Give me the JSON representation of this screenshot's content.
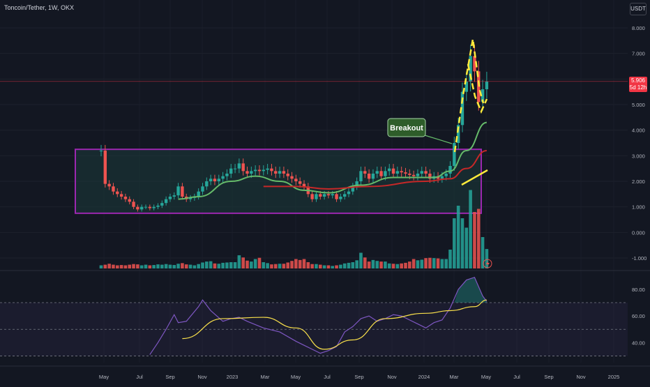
{
  "header": {
    "symbol_title": "Toncoin/Tether, 1W, OKX",
    "currency_button": "USDT"
  },
  "colors": {
    "background": "#131722",
    "up": "#26a69a",
    "down": "#ef5350",
    "ema_green": "#66bb6a",
    "ema_red": "#c62828",
    "range_box": "#9c27b0",
    "annotation_yellow": "#ffeb3b",
    "rsi_line": "#7e57c2",
    "rsi_ma": "#f9e04b",
    "price_line": "#f23645"
  },
  "price_axis": {
    "ticks": [
      "8.000",
      "7.000",
      "6.000",
      "5.000",
      "4.000",
      "3.000",
      "2.000",
      "1.000",
      "0.000",
      "-1.000"
    ]
  },
  "last_price": {
    "value": "5.906",
    "countdown": "5d 12h"
  },
  "rsi_axis": {
    "ticks": [
      "80.00",
      "60.00",
      "40.00"
    ]
  },
  "time_axis": {
    "labels": [
      "May",
      "Jul",
      "Sep",
      "Nov",
      "2023",
      "Mar",
      "May",
      "Jul",
      "Sep",
      "Nov",
      "2024",
      "Mar",
      "May",
      "Jul",
      "Sep",
      "Nov",
      "2025"
    ]
  },
  "annotation": {
    "breakout_label": "Breakout"
  },
  "icons": {
    "alert": "bolt-icon"
  },
  "chart_data": {
    "type": "candlestick",
    "x_unit": "weeks since first bar",
    "ylim": [
      -1.5,
      8.5
    ],
    "close": [
      3.2,
      1.9,
      1.8,
      1.6,
      1.5,
      1.4,
      1.3,
      1.2,
      1.0,
      0.9,
      1.0,
      1.0,
      0.95,
      1.0,
      1.05,
      1.15,
      1.3,
      1.4,
      1.45,
      1.8,
      1.4,
      1.3,
      1.35,
      1.4,
      1.6,
      1.8,
      2.0,
      2.1,
      2.0,
      2.1,
      2.2,
      2.3,
      2.5,
      2.5,
      2.7,
      2.4,
      2.3,
      2.4,
      2.45,
      2.4,
      2.45,
      2.5,
      2.4,
      2.3,
      2.4,
      2.3,
      2.2,
      2.1,
      2.0,
      1.9,
      1.8,
      1.5,
      1.3,
      1.5,
      1.4,
      1.5,
      1.45,
      1.5,
      1.3,
      1.4,
      1.5,
      1.6,
      1.8,
      2.0,
      2.4,
      2.3,
      2.1,
      2.3,
      2.4,
      2.2,
      2.4,
      2.5,
      2.3,
      2.4,
      2.35,
      2.3,
      2.25,
      2.2,
      2.3,
      2.4,
      2.3,
      2.1,
      2.2,
      2.1,
      2.2,
      2.3,
      2.6,
      3.5,
      4.2,
      5.5,
      5.9,
      6.9,
      6.3,
      5.1,
      5.6,
      5.9
    ],
    "ema_green_anchors": [
      [
        19,
        1.3
      ],
      [
        24,
        1.4
      ],
      [
        32,
        2.0
      ],
      [
        38,
        2.2
      ],
      [
        44,
        2.0
      ],
      [
        50,
        1.65
      ],
      [
        56,
        1.55
      ],
      [
        64,
        1.85
      ],
      [
        72,
        2.15
      ],
      [
        82,
        2.15
      ],
      [
        86,
        2.4
      ],
      [
        90,
        3.2
      ],
      [
        95,
        4.3
      ]
    ],
    "ema_red_anchors": [
      [
        40,
        1.8
      ],
      [
        48,
        1.8
      ],
      [
        56,
        1.7
      ],
      [
        66,
        1.8
      ],
      [
        80,
        2.0
      ],
      [
        86,
        2.1
      ],
      [
        90,
        2.5
      ],
      [
        95,
        3.2
      ]
    ],
    "range_box": {
      "low": 0.75,
      "high": 3.25
    },
    "rsi_ylim": [
      25,
      92
    ],
    "rsi_levels": [
      70,
      50,
      30
    ],
    "rsi_anchors": [
      [
        12,
        31
      ],
      [
        14,
        40
      ],
      [
        16,
        50
      ],
      [
        18,
        61
      ],
      [
        19,
        55
      ],
      [
        21,
        56
      ],
      [
        24,
        67
      ],
      [
        25,
        72
      ],
      [
        27,
        64
      ],
      [
        30,
        56
      ],
      [
        32,
        58
      ],
      [
        34,
        59
      ],
      [
        36,
        56
      ],
      [
        40,
        51
      ],
      [
        44,
        48
      ],
      [
        48,
        41
      ],
      [
        50,
        38
      ],
      [
        52,
        35
      ],
      [
        54,
        32
      ],
      [
        56,
        34
      ],
      [
        58,
        37
      ],
      [
        60,
        48
      ],
      [
        62,
        52
      ],
      [
        64,
        58
      ],
      [
        66,
        60
      ],
      [
        68,
        56
      ],
      [
        70,
        58
      ],
      [
        72,
        61
      ],
      [
        74,
        60
      ],
      [
        76,
        57
      ],
      [
        78,
        54
      ],
      [
        80,
        51
      ],
      [
        82,
        55
      ],
      [
        84,
        57
      ],
      [
        86,
        66
      ],
      [
        88,
        80
      ],
      [
        90,
        87
      ],
      [
        92,
        89
      ],
      [
        93,
        82
      ],
      [
        94,
        75
      ],
      [
        95,
        71
      ]
    ],
    "rsi_ma_anchors": [
      [
        20,
        43
      ],
      [
        30,
        58
      ],
      [
        40,
        59
      ],
      [
        48,
        51
      ],
      [
        55,
        35
      ],
      [
        62,
        42
      ],
      [
        70,
        58
      ],
      [
        80,
        62
      ],
      [
        86,
        64
      ],
      [
        92,
        67
      ],
      [
        95,
        72
      ]
    ],
    "volume": [
      0.1,
      0.12,
      0.15,
      0.12,
      0.1,
      0.11,
      0.1,
      0.12,
      0.14,
      0.13,
      0.1,
      0.12,
      0.1,
      0.11,
      0.13,
      0.12,
      0.14,
      0.12,
      0.11,
      0.15,
      0.17,
      0.13,
      0.12,
      0.1,
      0.14,
      0.19,
      0.22,
      0.23,
      0.16,
      0.15,
      0.18,
      0.19,
      0.2,
      0.2,
      0.42,
      0.35,
      0.25,
      0.22,
      0.3,
      0.34,
      0.2,
      0.17,
      0.13,
      0.14,
      0.15,
      0.15,
      0.19,
      0.24,
      0.3,
      0.27,
      0.3,
      0.2,
      0.14,
      0.14,
      0.12,
      0.1,
      0.1,
      0.08,
      0.1,
      0.12,
      0.16,
      0.18,
      0.2,
      0.26,
      0.5,
      0.35,
      0.22,
      0.27,
      0.24,
      0.22,
      0.22,
      0.16,
      0.15,
      0.14,
      0.16,
      0.18,
      0.22,
      0.3,
      0.26,
      0.28,
      0.33,
      0.34,
      0.33,
      0.32,
      0.3,
      0.3,
      0.6,
      1.6,
      2.0,
      1.6,
      1.3,
      2.5,
      1.8,
      1.9,
      1.0,
      0.62
    ]
  }
}
